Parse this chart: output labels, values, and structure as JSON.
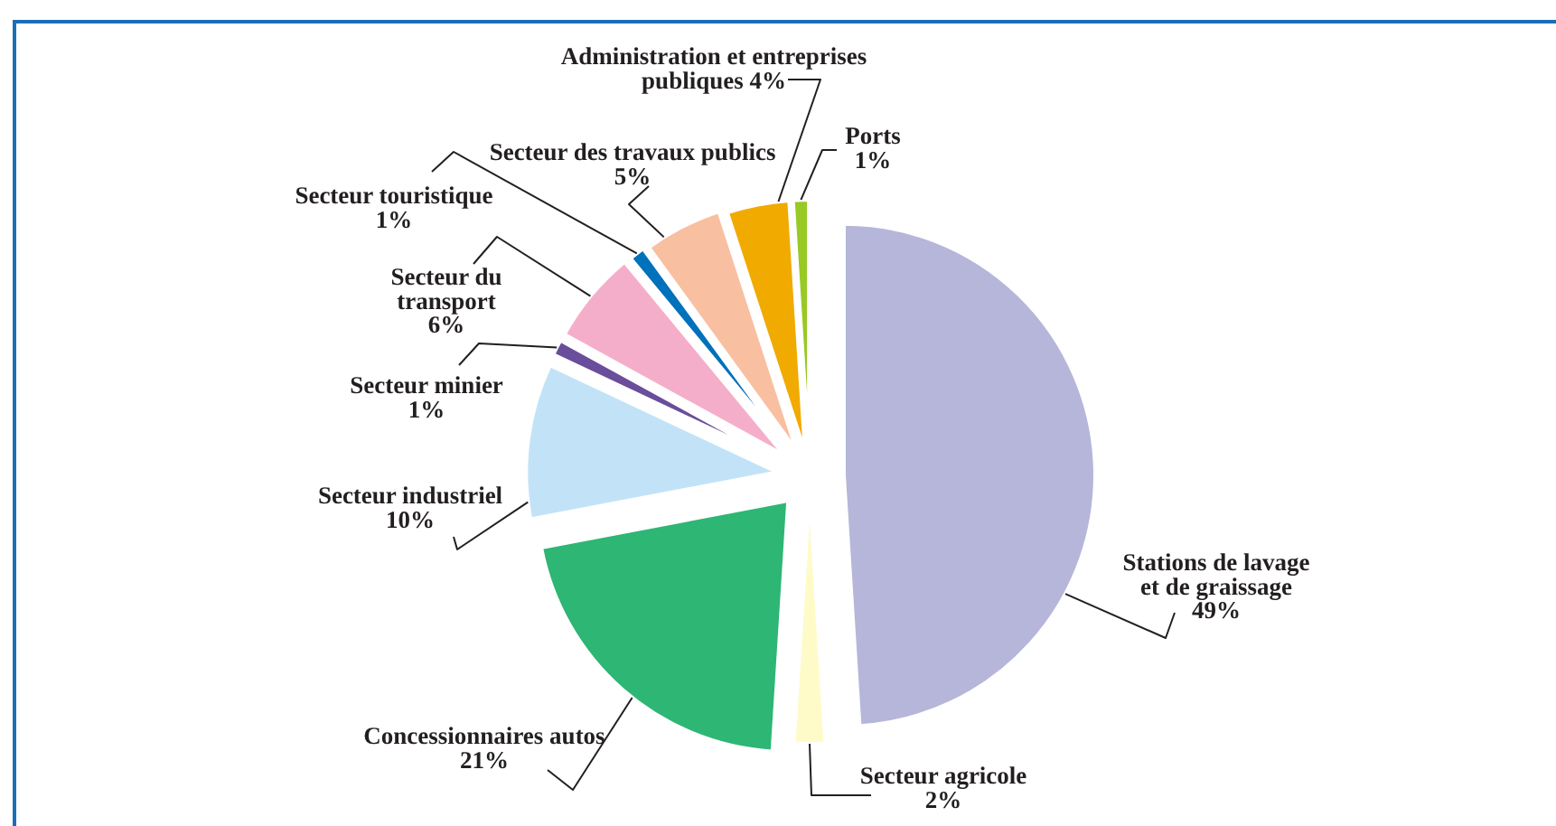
{
  "chart_data": {
    "type": "pie",
    "categories": [
      "Stations de lavage et de graissage",
      "Secteur agricole",
      "Concessionnaires autos",
      "Secteur industriel",
      "Secteur minier",
      "Secteur du transport",
      "Secteur touristique",
      "Secteur des travaux publics",
      "Administration et entreprises publiques",
      "Ports"
    ],
    "values": [
      49,
      2,
      21,
      10,
      1,
      6,
      1,
      5,
      4,
      1
    ],
    "value_labels": [
      "49%",
      "2%",
      "21%",
      "10%",
      "1%",
      "6%",
      "1%",
      "5%",
      "4%",
      "1%"
    ],
    "colors": [
      "#b5b6d9",
      "#fffbc9",
      "#2db674",
      "#c2e3f7",
      "#6a4d9b",
      "#f5aec9",
      "#0071bb",
      "#f8bfa1",
      "#f1aa00",
      "#98c924"
    ]
  }
}
